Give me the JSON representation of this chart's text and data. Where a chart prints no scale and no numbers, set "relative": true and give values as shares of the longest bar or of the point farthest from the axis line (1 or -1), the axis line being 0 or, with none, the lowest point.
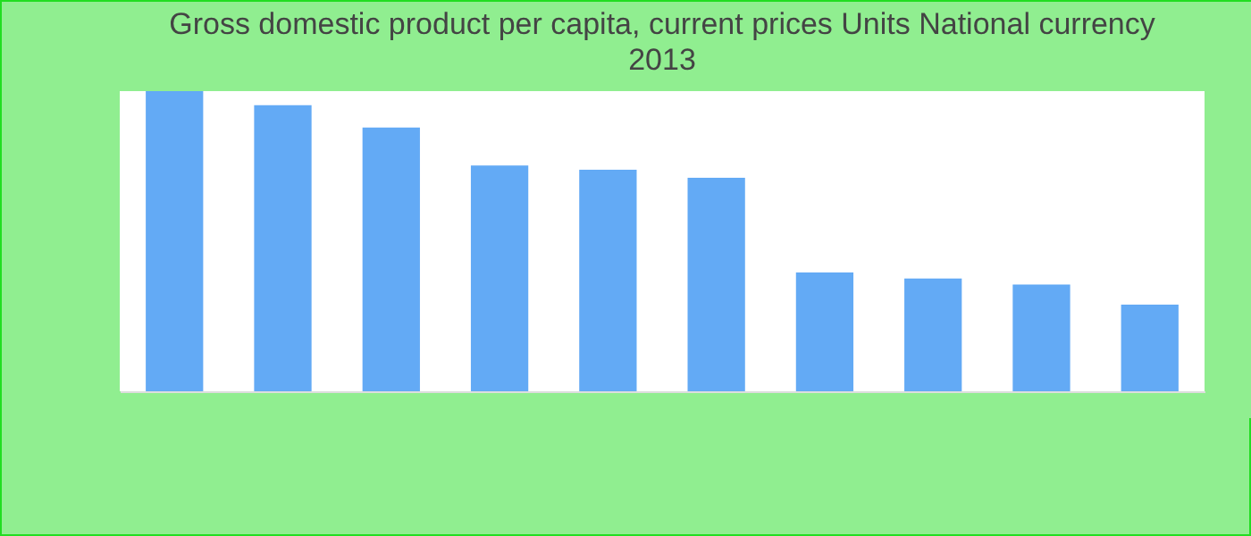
{
  "chart_data": {
    "type": "bar",
    "title": "Gross domestic product per capita, current prices Units National currency",
    "subtitle": "2013",
    "categories": [
      null,
      null,
      null,
      null,
      null,
      null,
      null,
      null,
      null,
      null
    ],
    "values": [
      1,
      0.953,
      0.879,
      0.752,
      0.738,
      0.711,
      0.396,
      0.376,
      0.356,
      0.289
    ],
    "color": "#63aaf5",
    "relative": true
  }
}
